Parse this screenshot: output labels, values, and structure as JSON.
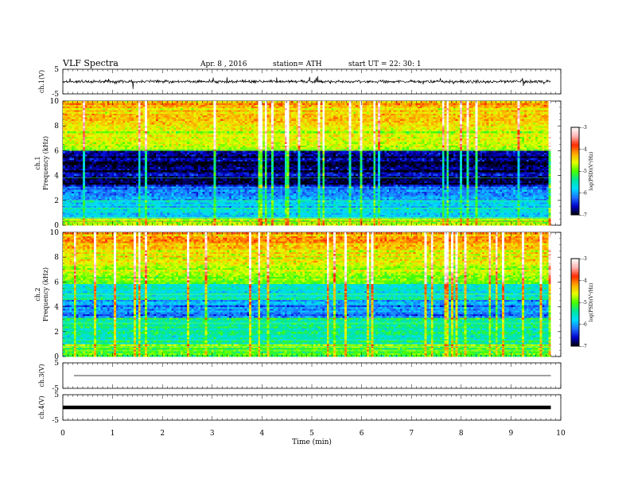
{
  "header": {
    "title": "VLF Spectra",
    "date": "Apr. 8 , 2016",
    "station": "station= ATH",
    "start": "start UT = 22: 30: 1"
  },
  "chart_data": {
    "type": "heatmap",
    "title": "VLF Spectra",
    "xlabel": "Time (min)",
    "xlim": [
      0,
      10
    ],
    "x_ticks": [
      "0",
      "1",
      "2",
      "3",
      "4",
      "5",
      "6",
      "7",
      "8",
      "9",
      "10"
    ],
    "data_end_min": 9.8,
    "panels": [
      {
        "kind": "waveform",
        "ylabel": "ch.1(V)",
        "ylim": [
          -5,
          5
        ],
        "y_ticks": [
          "5",
          "-5"
        ],
        "color": "#000000"
      },
      {
        "kind": "spectrogram",
        "ylabel": "ch.1\nFrequency (kHz)",
        "ylim": [
          0,
          10
        ],
        "y_ticks": [
          "0",
          "2",
          "4",
          "6",
          "8",
          "10"
        ]
      },
      {
        "kind": "spectrogram",
        "ylabel": "ch.2\nFrequency (kHz)",
        "ylim": [
          0,
          10
        ],
        "y_ticks": [
          "0",
          "2",
          "4",
          "6",
          "8",
          "10"
        ]
      },
      {
        "kind": "waveform",
        "ylabel": "ch.3(V)",
        "ylim": [
          -5,
          5
        ],
        "y_ticks": [
          "5",
          "-5"
        ],
        "color": "#000000"
      },
      {
        "kind": "waveform",
        "ylabel": "ch.4(V)",
        "ylim": [
          -5,
          5
        ],
        "y_ticks": [
          "5",
          "-5"
        ],
        "color": "#000000"
      }
    ],
    "colorbar": {
      "label": "log(PSD)(V²/Hz)",
      "range": [
        -7,
        -3
      ],
      "ticks": [
        "-3",
        "-4",
        "-5",
        "-6",
        "-7"
      ],
      "colors": [
        "#000000",
        "#0000c8",
        "#1e6eff",
        "#00dcff",
        "#00e6a0",
        "#46ff00",
        "#e6ff00",
        "#ffaa00",
        "#ff2800",
        "#ffb4b4",
        "#ffffff"
      ]
    }
  }
}
